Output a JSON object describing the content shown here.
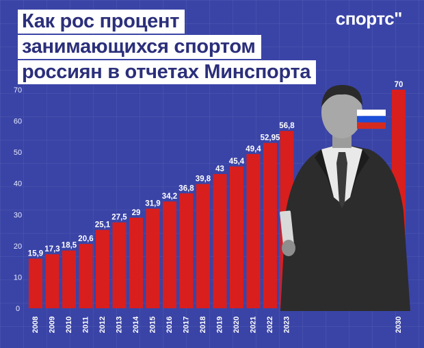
{
  "header": {
    "title_lines": [
      "Как рос процент",
      "занимающихся спортом",
      "россиян в отчетах Минспорта"
    ],
    "logo": "спортс\""
  },
  "colors": {
    "background": "#3a44a6",
    "bar": "#d91e1e",
    "title_bg": "#ffffff",
    "title_text": "#2b2f7a"
  },
  "icons": {
    "flag": "russia-flag-icon",
    "photo": "person-photo"
  },
  "chart_data": {
    "type": "bar",
    "title": "Как рос процент занимающихся спортом россиян в отчетах Минспорта",
    "categories": [
      "2008",
      "2009",
      "2010",
      "2011",
      "2012",
      "2013",
      "2014",
      "2015",
      "2016",
      "2017",
      "2018",
      "2019",
      "2020",
      "2021",
      "2022",
      "2023",
      "2030"
    ],
    "values": [
      15.9,
      17.3,
      18.5,
      20.6,
      25.1,
      27.5,
      29,
      31.9,
      34.2,
      36.8,
      39.8,
      43,
      45.4,
      49.4,
      52.95,
      56.8,
      70
    ],
    "value_labels": [
      "15,9",
      "17,3",
      "18,5",
      "20,6",
      "25,1",
      "27,5",
      "29",
      "31,9",
      "34,2",
      "36,8",
      "39,8",
      "43",
      "45,4",
      "49,4",
      "52,95",
      "56,8",
      "70"
    ],
    "yticks": [
      0,
      10,
      20,
      30,
      40,
      50,
      60,
      70
    ],
    "ylim": [
      0,
      70
    ],
    "xlabel": "",
    "ylabel": "",
    "grid": false,
    "legend": "none"
  }
}
